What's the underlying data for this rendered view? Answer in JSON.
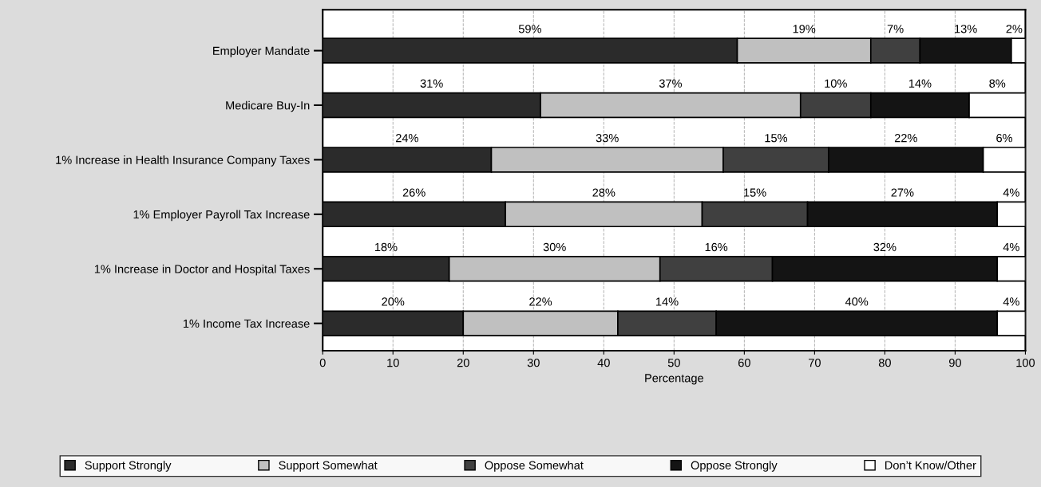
{
  "chart_data": {
    "type": "bar",
    "orientation": "horizontal",
    "stacked": true,
    "xlabel": "Percentage",
    "categories": [
      "Employer Mandate",
      "Medicare Buy-In",
      "1% Increase in Health Insurance Company Taxes",
      "1% Employer Payroll Tax Increase",
      "1% Increase in Doctor and Hospital Taxes",
      "1% Income Tax Increase"
    ],
    "series": [
      {
        "name": "Support Strongly",
        "color": "#2b2b2b",
        "values": [
          59,
          31,
          24,
          26,
          18,
          20
        ],
        "value_labels": [
          "59%",
          "31%",
          "24%",
          "26%",
          "18%",
          "20%"
        ]
      },
      {
        "name": "Support Somewhat",
        "color": "#c0c0c0",
        "values": [
          19,
          37,
          33,
          28,
          30,
          22
        ],
        "value_labels": [
          "19%",
          "37%",
          "33%",
          "28%",
          "30%",
          "22%"
        ]
      },
      {
        "name": "Oppose Somewhat",
        "color": "#404040",
        "values": [
          7,
          10,
          15,
          15,
          16,
          14
        ],
        "value_labels": [
          "7%",
          "10%",
          "15%",
          "15%",
          "16%",
          "14%"
        ]
      },
      {
        "name": "Oppose Strongly",
        "color": "#141414",
        "values": [
          13,
          14,
          22,
          27,
          32,
          40
        ],
        "value_labels": [
          "13%",
          "14%",
          "22%",
          "27%",
          "32%",
          "40%"
        ]
      },
      {
        "name": "Don’t Know/Other",
        "color": "#ffffff",
        "values": [
          2,
          8,
          6,
          4,
          4,
          4
        ],
        "value_labels": [
          "2%",
          "8%",
          "6%",
          "4%",
          "4%",
          "4%"
        ]
      }
    ],
    "xlim": [
      0,
      100
    ],
    "xticks": [
      0,
      10,
      20,
      30,
      40,
      50,
      60,
      70,
      80,
      90,
      100
    ],
    "grid": "x",
    "legend": "bottom"
  }
}
